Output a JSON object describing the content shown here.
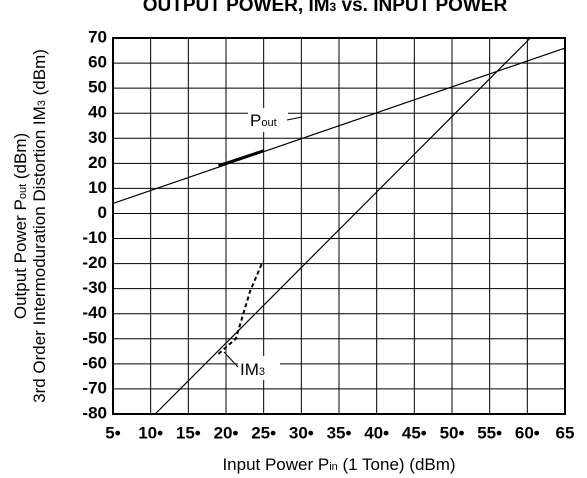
{
  "chart_data": {
    "type": "line",
    "title": [
      "OUTPUT POWER, IM",
      "3",
      " vs. INPUT POWER"
    ],
    "y_label_line1": [
      "Output Power  P",
      "out",
      " (dBm)"
    ],
    "y_label_line2": [
      "3rd Order Intermoduration Distortion  IM",
      "3",
      " (dBm)"
    ],
    "x_label": [
      "Input Power  P",
      "in",
      " (1 Tone) (dBm)"
    ],
    "annotations": [
      {
        "text": "P",
        "sub": "out"
      },
      {
        "text": "IM",
        "sub": "3"
      }
    ],
    "xlim": [
      5,
      65
    ],
    "ylim": [
      -80,
      70
    ],
    "xticks": [
      {
        "value": 5,
        "label": "5•"
      },
      {
        "value": 10,
        "label": "10•"
      },
      {
        "value": 15,
        "label": "15•"
      },
      {
        "value": 20,
        "label": "20•"
      },
      {
        "value": 25,
        "label": "25•"
      },
      {
        "value": 30,
        "label": "30•"
      },
      {
        "value": 35,
        "label": "35•"
      },
      {
        "value": 40,
        "label": "40•"
      },
      {
        "value": 45,
        "label": "45•"
      },
      {
        "value": 50,
        "label": "50•"
      },
      {
        "value": 55,
        "label": "55•"
      },
      {
        "value": 60,
        "label": "60•"
      },
      65
    ],
    "yticks": [
      -80,
      -70,
      -60,
      -50,
      -40,
      -30,
      -20,
      -10,
      0,
      10,
      20,
      30,
      40,
      50,
      60,
      70
    ],
    "grid": true,
    "series": [
      {
        "color": "#000000",
        "style": "thin",
        "x": [
          5,
          65
        ],
        "values": [
          4,
          66
        ]
      },
      {
        "color": "#000000",
        "style": "thin",
        "x": [
          10.6,
          60.4
        ],
        "values": [
          -80,
          70
        ]
      },
      {
        "color": "#000000",
        "style": "thick",
        "x": [
          19,
          25
        ],
        "values": [
          19,
          25
        ]
      },
      {
        "color": "#000000",
        "style": "dashed",
        "x": [
          19,
          21.3,
          23.2,
          24.9
        ],
        "values": [
          -56,
          -50,
          -31,
          -19
        ]
      }
    ]
  }
}
